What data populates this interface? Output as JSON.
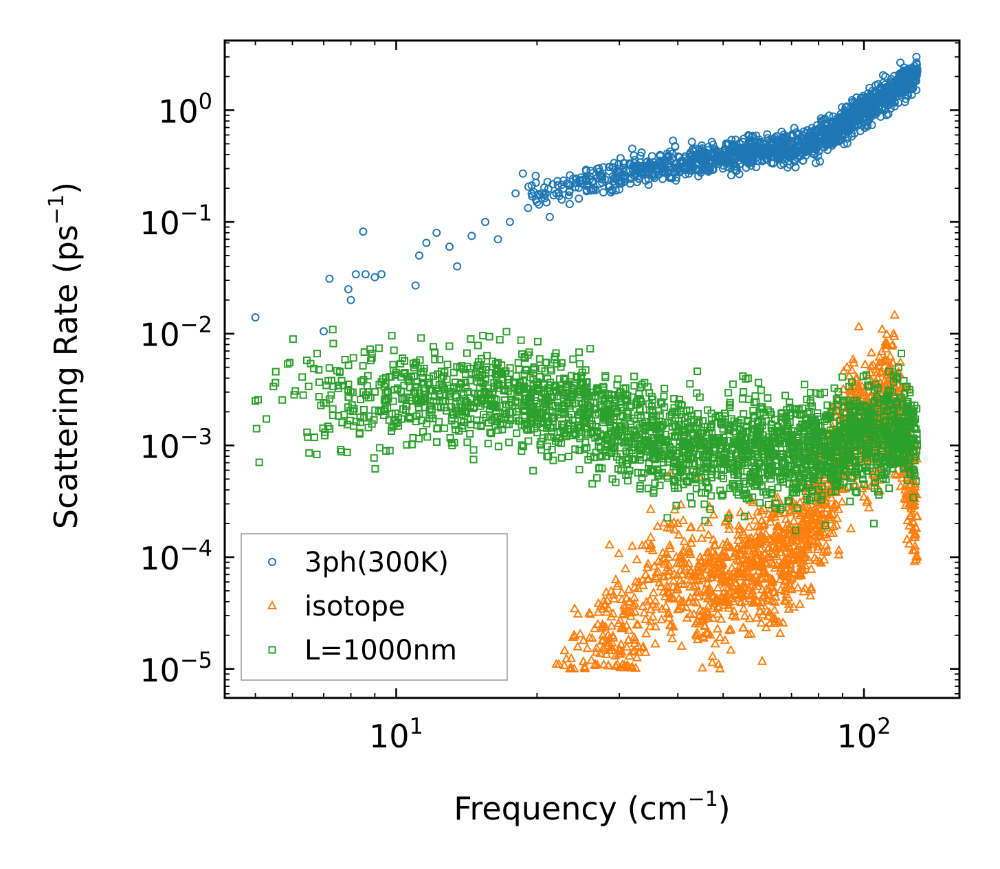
{
  "chart_data": {
    "type": "scatter",
    "xscale": "log",
    "yscale": "log",
    "xlim": [
      4.3,
      160
    ],
    "ylim": [
      5.5e-06,
      4.2
    ],
    "xlabel": {
      "text": "Frequency (cm",
      "sup": "−1",
      "close": ")"
    },
    "ylabel": {
      "text": "Scattering Rate (ps",
      "sup": "−1",
      "close": ")"
    },
    "x_ticks": [
      {
        "value": 10,
        "base": "10",
        "exp": "1"
      },
      {
        "value": 100,
        "base": "10",
        "exp": "2"
      }
    ],
    "y_ticks": [
      {
        "value": 1,
        "base": "10",
        "exp": "0"
      },
      {
        "value": 0.1,
        "base": "10",
        "exp": "−1"
      },
      {
        "value": 0.01,
        "base": "10",
        "exp": "−2"
      },
      {
        "value": 0.001,
        "base": "10",
        "exp": "−3"
      },
      {
        "value": 0.0001,
        "base": "10",
        "exp": "−4"
      },
      {
        "value": 1e-05,
        "base": "10",
        "exp": "−5"
      }
    ],
    "legend_position": "lower-left",
    "series": [
      {
        "name": "3ph(300K)",
        "marker": "circle",
        "color": "#1f77b4",
        "sample_points": [
          [
            5,
            0.014
          ],
          [
            7,
            0.0105
          ],
          [
            7.2,
            0.031
          ],
          [
            7.9,
            0.025
          ],
          [
            8.0,
            0.02
          ],
          [
            8.2,
            0.034
          ],
          [
            8.5,
            0.082
          ],
          [
            8.6,
            0.034
          ],
          [
            9.0,
            0.032
          ],
          [
            9.3,
            0.034
          ],
          [
            11,
            0.027
          ],
          [
            11.2,
            0.05
          ],
          [
            11.6,
            0.065
          ],
          [
            12.2,
            0.08
          ],
          [
            13,
            0.06
          ],
          [
            13.5,
            0.04
          ],
          [
            14.5,
            0.075
          ],
          [
            15.5,
            0.1
          ],
          [
            16.5,
            0.07
          ],
          [
            17.5,
            0.1
          ],
          [
            18,
            0.18
          ],
          [
            20,
            0.15
          ],
          [
            22,
            0.18
          ],
          [
            25,
            0.22
          ],
          [
            30,
            0.3
          ],
          [
            38,
            0.35
          ],
          [
            45,
            0.4
          ],
          [
            55,
            0.45
          ],
          [
            65,
            0.48
          ],
          [
            75,
            0.52
          ],
          [
            85,
            0.7
          ],
          [
            95,
            1.0
          ],
          [
            110,
            1.4
          ],
          [
            125,
            2.0
          ],
          [
            130,
            2.25
          ]
        ],
        "trend": [
          [
            18,
            0.17
          ],
          [
            25,
            0.22
          ],
          [
            35,
            0.3
          ],
          [
            45,
            0.35
          ],
          [
            55,
            0.4
          ],
          [
            65,
            0.44
          ],
          [
            75,
            0.48
          ],
          [
            85,
            0.62
          ],
          [
            95,
            0.88
          ],
          [
            105,
            1.15
          ],
          [
            115,
            1.5
          ],
          [
            125,
            1.9
          ],
          [
            130,
            2.15
          ]
        ]
      },
      {
        "name": "isotope",
        "marker": "triangle",
        "color": "#ff7f0e",
        "sample_points": [
          [
            22,
            1.1e-05
          ],
          [
            24,
            2e-05
          ],
          [
            27,
            2.5e-05
          ],
          [
            30,
            1.5e-05
          ],
          [
            33,
            6e-05
          ],
          [
            35,
            0.00015
          ],
          [
            40,
            0.0002
          ],
          [
            45,
            8e-05
          ],
          [
            50,
            0.0001
          ],
          [
            55,
            0.00012
          ],
          [
            60,
            0.00014
          ],
          [
            65,
            0.00016
          ],
          [
            70,
            0.0003
          ],
          [
            75,
            0.00035
          ],
          [
            80,
            0.0003
          ],
          [
            85,
            0.0008
          ],
          [
            88,
            0.002
          ],
          [
            92,
            0.005
          ],
          [
            96,
            0.0025
          ],
          [
            100,
            0.003
          ],
          [
            105,
            0.0025
          ],
          [
            112,
            0.008
          ],
          [
            118,
            0.003
          ],
          [
            125,
            0.0003
          ],
          [
            130,
            0.0001
          ]
        ],
        "trend": [
          [
            22,
            1.2e-05
          ],
          [
            25,
            1.8e-05
          ],
          [
            28,
            1.8e-05
          ],
          [
            32,
            2.5e-05
          ],
          [
            35,
            6e-05
          ],
          [
            40,
            7e-05
          ],
          [
            45,
            5e-05
          ],
          [
            50,
            6e-05
          ],
          [
            55,
            7e-05
          ],
          [
            60,
            8e-05
          ],
          [
            65,
            9e-05
          ],
          [
            70,
            0.00012
          ],
          [
            75,
            0.00018
          ],
          [
            80,
            0.00025
          ],
          [
            85,
            0.0004
          ],
          [
            90,
            0.0009
          ],
          [
            95,
            0.0018
          ],
          [
            100,
            0.0016
          ],
          [
            105,
            0.0015
          ],
          [
            112,
            0.003
          ],
          [
            118,
            0.002
          ],
          [
            125,
            0.0005
          ],
          [
            130,
            0.0002
          ]
        ]
      },
      {
        "name": "L=1000nm",
        "marker": "square",
        "color": "#2ca02c",
        "sample_points": [
          [
            5,
            0.0025
          ],
          [
            7,
            0.0024
          ],
          [
            7.2,
            0.0026
          ],
          [
            7.9,
            0.0027
          ],
          [
            8.0,
            0.003
          ],
          [
            8.5,
            0.003
          ],
          [
            8.7,
            0.0042
          ],
          [
            9.2,
            0.0035
          ],
          [
            10.5,
            0.0027
          ],
          [
            12.5,
            0.0046
          ],
          [
            14,
            0.002
          ],
          [
            15,
            0.0052
          ],
          [
            16.5,
            0.0055
          ],
          [
            18,
            0.0025
          ],
          [
            20,
            0.0018
          ],
          [
            22,
            0.003
          ],
          [
            25,
            0.0045
          ],
          [
            28,
            0.0042
          ],
          [
            30,
            0.0015
          ],
          [
            35,
            0.0006
          ],
          [
            40,
            0.0012
          ],
          [
            45,
            0.0013
          ],
          [
            50,
            0.001
          ],
          [
            55,
            0.0008
          ],
          [
            60,
            0.0007
          ],
          [
            70,
            0.001
          ],
          [
            80,
            0.0015
          ],
          [
            90,
            0.0009
          ],
          [
            95,
            0.0012
          ],
          [
            100,
            0.00045
          ],
          [
            105,
            0.0002
          ],
          [
            115,
            0.003
          ],
          [
            125,
            0.0008
          ],
          [
            130,
            0.001
          ]
        ],
        "trend": [
          [
            5,
            0.0025
          ],
          [
            8,
            0.0028
          ],
          [
            12,
            0.003
          ],
          [
            16,
            0.0028
          ],
          [
            20,
            0.0025
          ],
          [
            25,
            0.002
          ],
          [
            30,
            0.0014
          ],
          [
            35,
            0.0011
          ],
          [
            45,
            0.0009
          ],
          [
            55,
            0.00085
          ],
          [
            65,
            0.0009
          ],
          [
            75,
            0.00095
          ],
          [
            85,
            0.0009
          ],
          [
            95,
            0.0011
          ],
          [
            105,
            0.0012
          ],
          [
            115,
            0.0013
          ],
          [
            125,
            0.0012
          ],
          [
            130,
            0.0012
          ]
        ]
      }
    ]
  }
}
